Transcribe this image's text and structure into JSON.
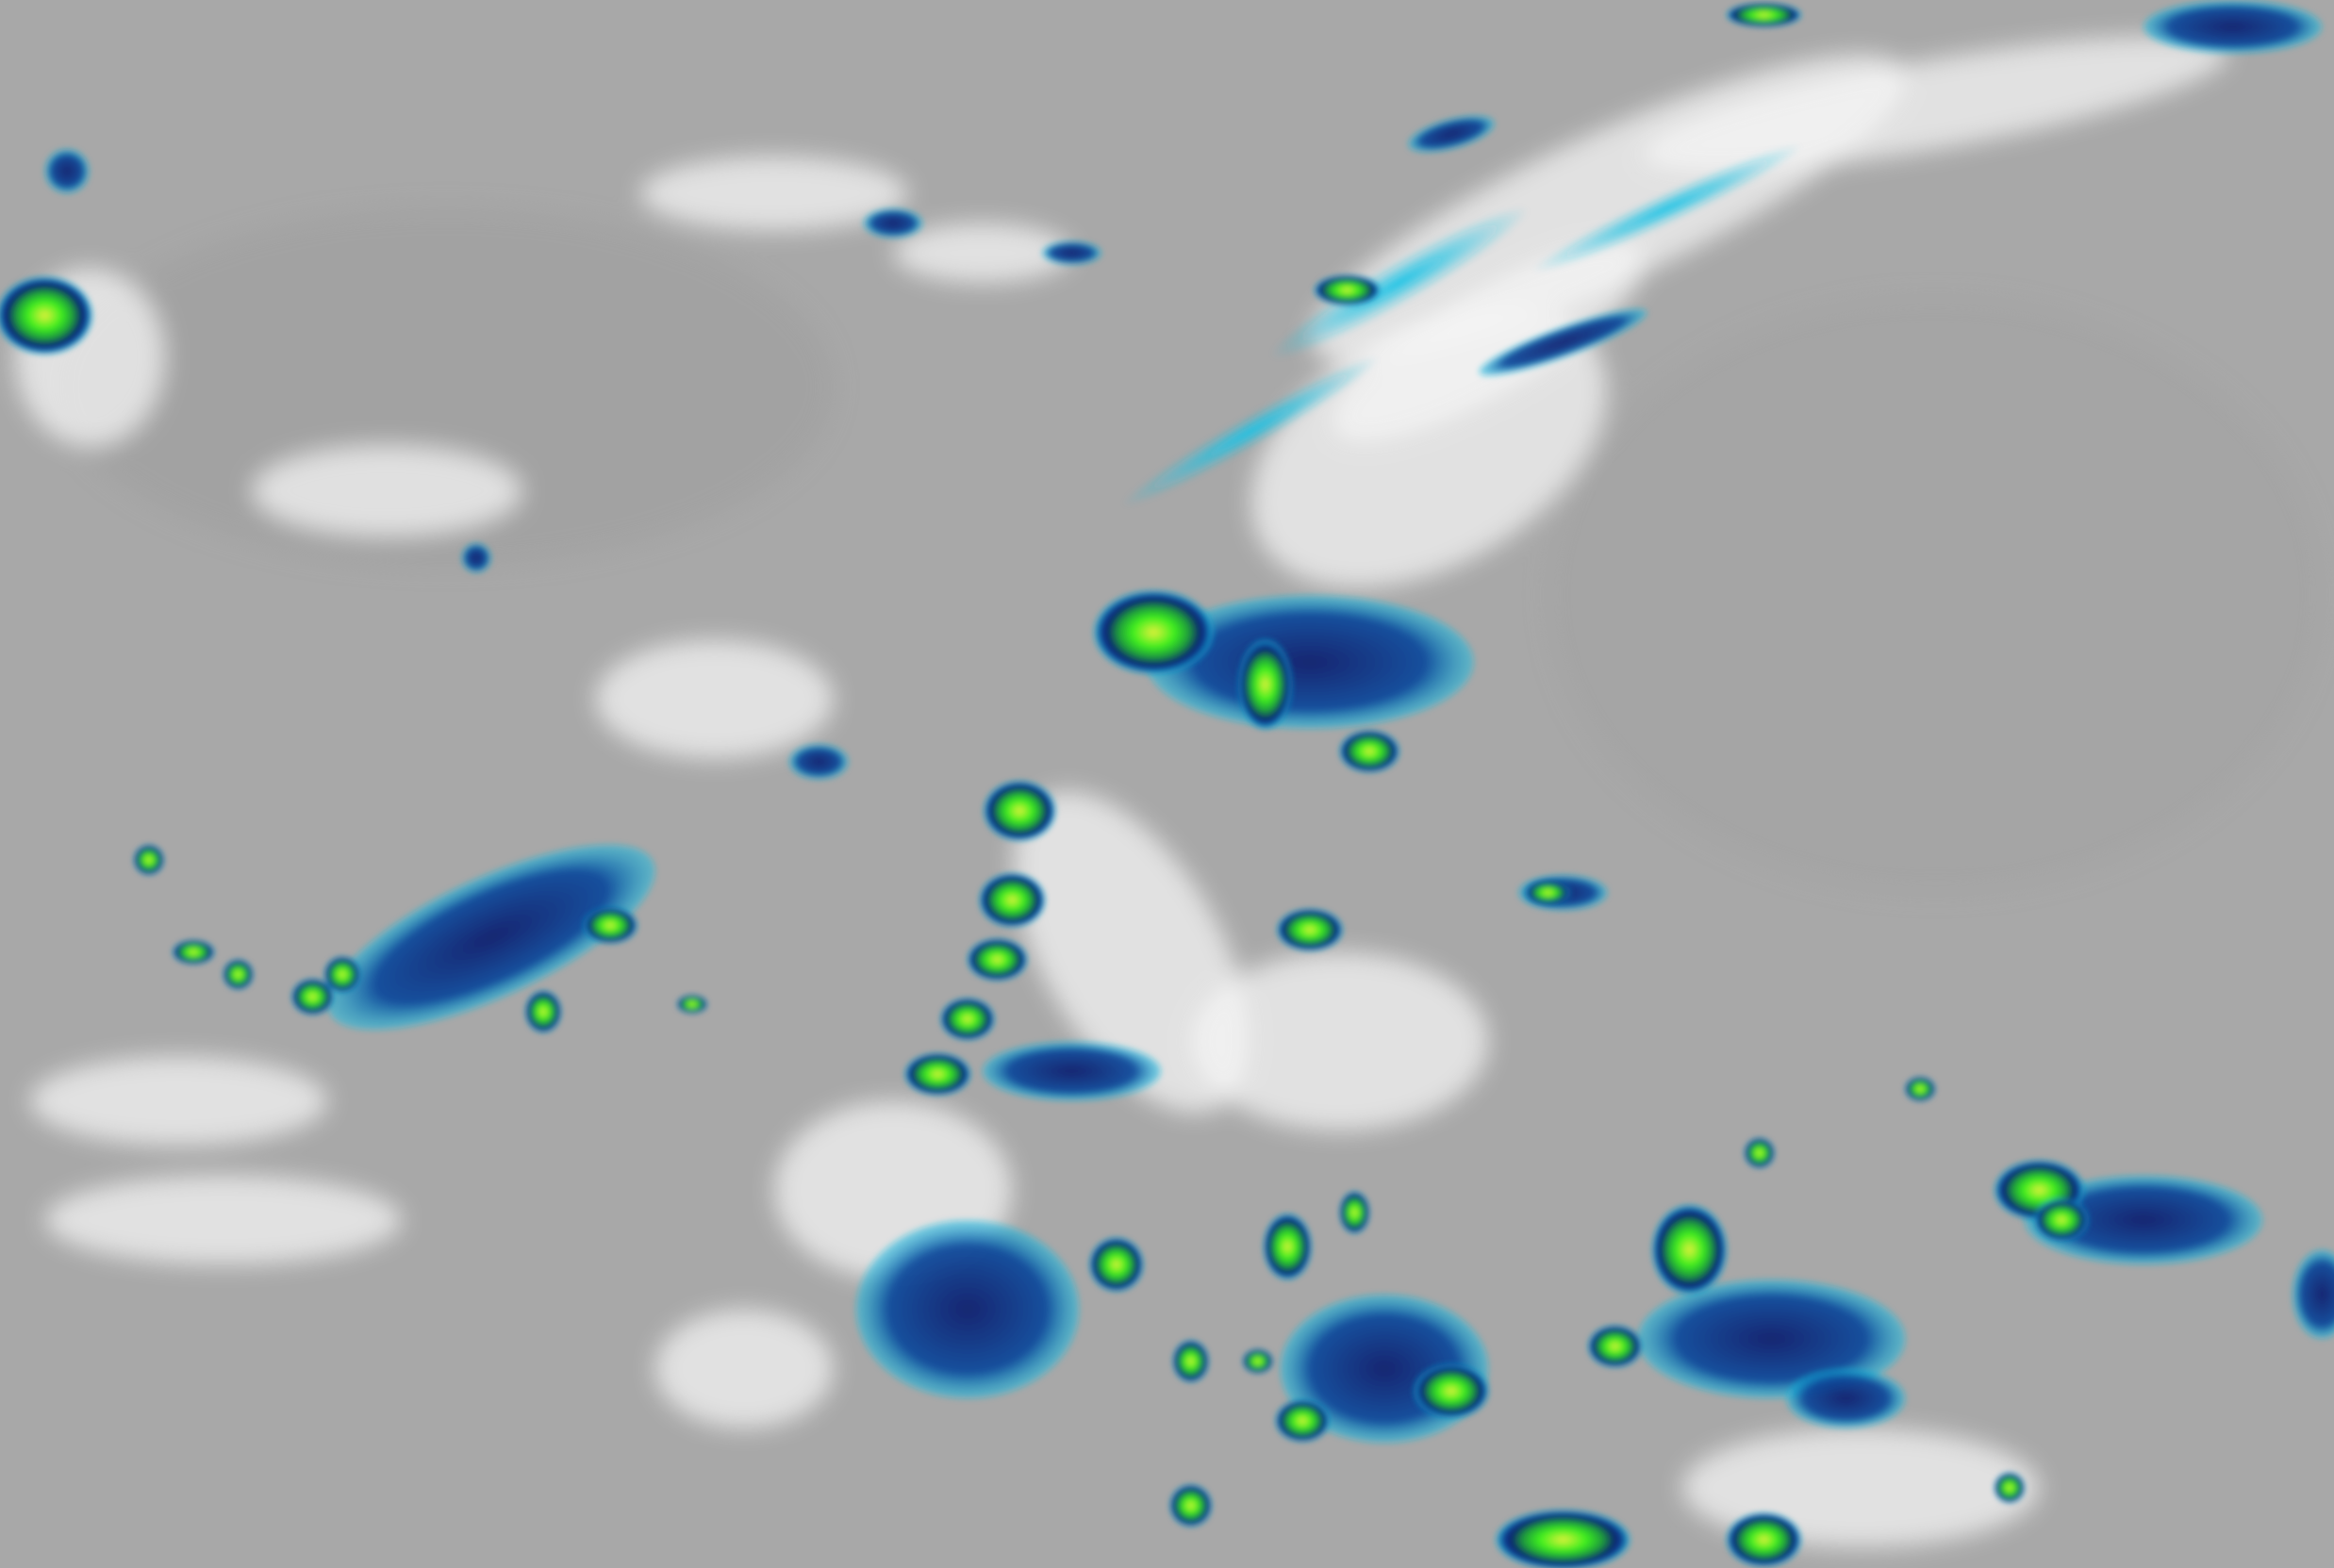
{
  "image": {
    "kind": "infrared satellite cloud imagery",
    "palette": {
      "background": "#a8a8a8",
      "background_dark": "#9c9c9c",
      "cloud_white": "#f4f4f4",
      "cold_cyan": "#19c3e6",
      "colder_blue": "#0a4a9c",
      "coldest_navy": "#0a1f6e",
      "convective_green": "#3cf01e",
      "convective_yellow": "#e6f03c"
    }
  }
}
